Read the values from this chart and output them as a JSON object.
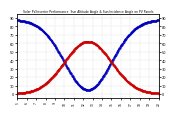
{
  "title": "Solar PV/Inverter Performance  Sun Altitude Angle & Sun Incidence Angle on PV Panels",
  "x_start": 5,
  "x_end": 20,
  "num_points": 300,
  "altitude_peak": 62,
  "altitude_peak_time": 12.5,
  "altitude_sigma": 2.5,
  "incidence_min": 5,
  "incidence_max": 88,
  "incidence_peak_time": 12.5,
  "incidence_sigma": 2.5,
  "blue_color": "#0000bb",
  "red_color": "#cc0000",
  "bg_color": "#ffffff",
  "grid_color": "#bbbbbb",
  "ylim_left": [
    -5,
    95
  ],
  "ylim_right": [
    -5,
    95
  ],
  "xticks": [
    5,
    6,
    7,
    8,
    9,
    10,
    11,
    12,
    13,
    14,
    15,
    16,
    17,
    18,
    19,
    20
  ],
  "yticks_left": [
    0,
    10,
    20,
    30,
    40,
    50,
    60,
    70,
    80,
    90
  ],
  "yticks_right": [
    0,
    10,
    20,
    30,
    40,
    50,
    60,
    70,
    80,
    90
  ],
  "linewidth": 0.8,
  "linestyle": "--",
  "marker": ".",
  "markersize": 1.0
}
